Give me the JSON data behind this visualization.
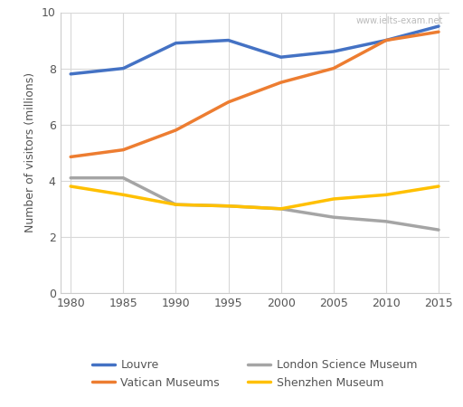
{
  "years": [
    1980,
    1985,
    1990,
    1995,
    2000,
    2005,
    2010,
    2015
  ],
  "louvre": [
    7.8,
    8.0,
    8.9,
    9.0,
    8.4,
    8.6,
    9.0,
    9.5
  ],
  "vatican": [
    4.85,
    5.1,
    5.8,
    6.8,
    7.5,
    8.0,
    9.0,
    9.3
  ],
  "london_science": [
    4.1,
    4.1,
    3.15,
    3.1,
    3.0,
    2.7,
    2.55,
    2.25
  ],
  "shenzhen": [
    3.8,
    3.5,
    3.15,
    3.1,
    3.0,
    3.35,
    3.5,
    3.8
  ],
  "louvre_color": "#4472C4",
  "vatican_color": "#ED7D31",
  "london_color": "#A5A5A5",
  "shenzhen_color": "#FFC000",
  "ylabel": "Number of visitors (millions)",
  "ylim": [
    0,
    10
  ],
  "yticks": [
    0,
    2,
    4,
    6,
    8,
    10
  ],
  "xlim": [
    1979,
    2016
  ],
  "xticks": [
    1980,
    1985,
    1990,
    1995,
    2000,
    2005,
    2010,
    2015
  ],
  "watermark": "www.ielts-exam.net",
  "legend_labels": [
    "Louvre",
    "Vatican Museums",
    "London Science Museum",
    "Shenzhen Museum"
  ],
  "line_width": 2.5,
  "grid_color": "#D8D8D8",
  "tick_fontsize": 9,
  "ylabel_fontsize": 9,
  "legend_fontsize": 9,
  "watermark_color": "#BBBBBB",
  "watermark_fontsize": 7
}
